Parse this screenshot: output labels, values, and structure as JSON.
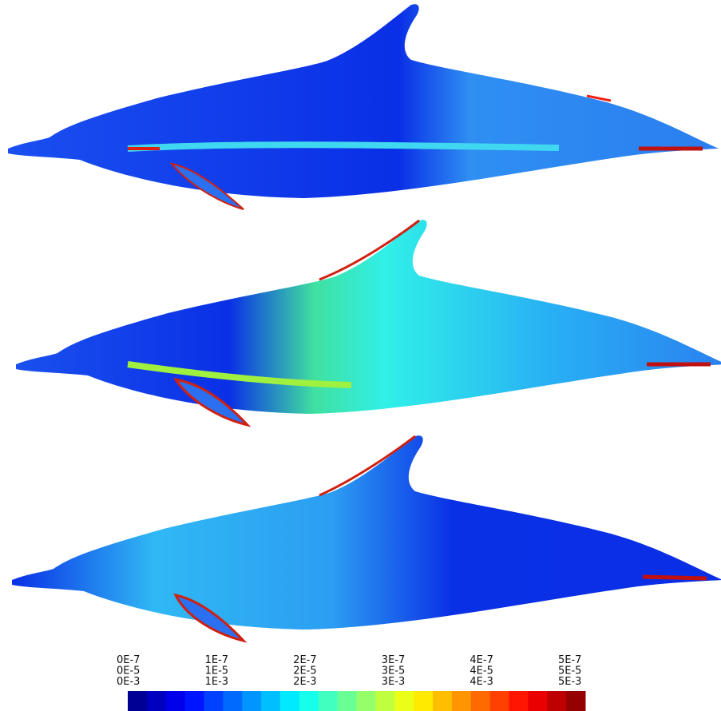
{
  "colorbar": {
    "ticks": [
      {
        "lines": [
          "0E-7",
          "0E-5",
          "0E-3"
        ]
      },
      {
        "lines": [
          "1E-7",
          "1E-5",
          "1E-3"
        ]
      },
      {
        "lines": [
          "2E-7",
          "2E-5",
          "2E-3"
        ]
      },
      {
        "lines": [
          "3E-7",
          "3E-5",
          "3E-3"
        ]
      },
      {
        "lines": [
          "4E-7",
          "4E-5",
          "4E-3"
        ]
      },
      {
        "lines": [
          "5E-7",
          "5E-5",
          "5E-3"
        ]
      }
    ]
  }
}
